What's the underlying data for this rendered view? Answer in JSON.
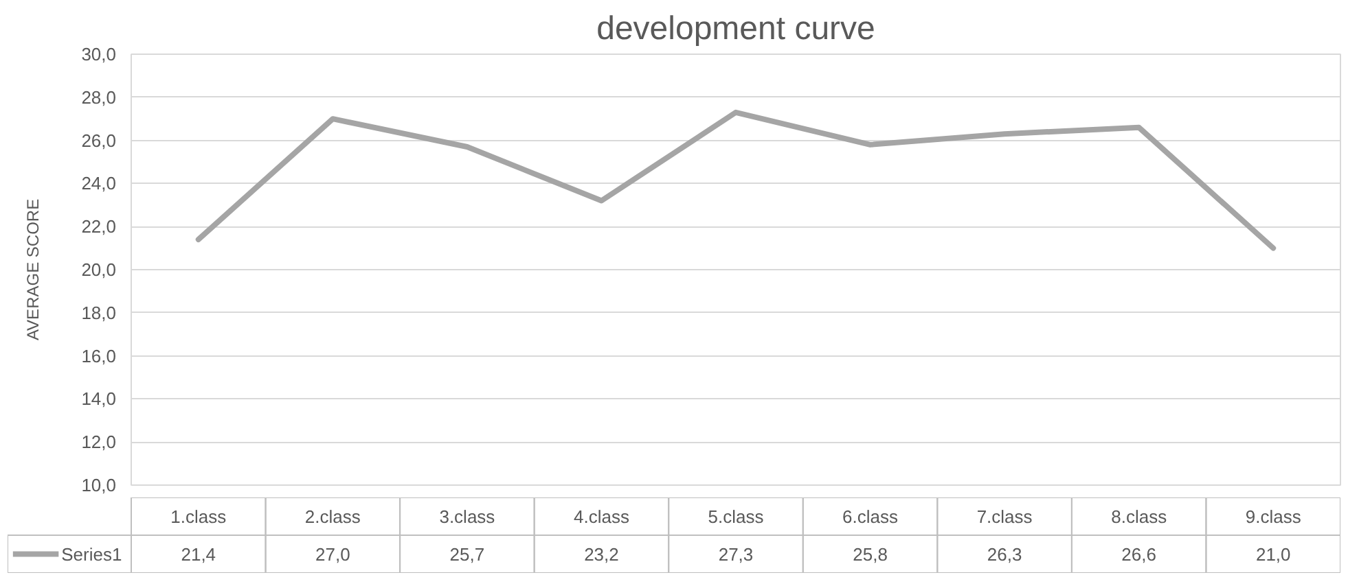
{
  "chart_data": {
    "type": "line",
    "title": "development curve",
    "ylabel": "AVERAGE SCORE",
    "categories": [
      "1.class",
      "2.class",
      "3.class",
      "4.class",
      "5.class",
      "6.class",
      "7.class",
      "8.class",
      "9.class"
    ],
    "series": [
      {
        "name": "Series1",
        "color": "#a5a5a5",
        "values": [
          21.4,
          27.0,
          25.7,
          23.2,
          27.3,
          25.8,
          26.3,
          26.6,
          21.0
        ],
        "value_labels": [
          "21,4",
          "27,0",
          "25,7",
          "23,2",
          "27,3",
          "25,8",
          "26,3",
          "26,6",
          "21,0"
        ]
      }
    ],
    "ylim": [
      10,
      30
    ],
    "yticks": [
      {
        "value": 10,
        "label": "10,0"
      },
      {
        "value": 12,
        "label": "12,0"
      },
      {
        "value": 14,
        "label": "14,0"
      },
      {
        "value": 16,
        "label": "16,0"
      },
      {
        "value": 18,
        "label": "18,0"
      },
      {
        "value": 20,
        "label": "20,0"
      },
      {
        "value": 22,
        "label": "22,0"
      },
      {
        "value": 24,
        "label": "24,0"
      },
      {
        "value": 26,
        "label": "26,0"
      },
      {
        "value": 28,
        "label": "28,0"
      },
      {
        "value": 30,
        "label": "30,0"
      }
    ],
    "grid": "y",
    "legend": "bottom",
    "marker": "none",
    "line_style": "solid"
  }
}
